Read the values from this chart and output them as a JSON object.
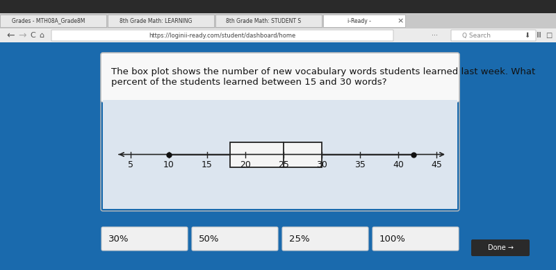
{
  "title_line1": "The box plot shows the number of new vocabulary words students learned last week. What",
  "title_line2": "percent of the students learned between 15 and 30 words?",
  "whisker_min": 10,
  "q1": 18,
  "median": 25,
  "q3": 30,
  "whisker_max": 42,
  "axis_min": 3,
  "axis_max": 47,
  "tick_values": [
    5,
    10,
    15,
    20,
    25,
    30,
    35,
    40,
    45
  ],
  "answer_choices": [
    "30%",
    "50%",
    "25%",
    "100%"
  ],
  "browser_bg": "#1a6aad",
  "card_top_color": "#f5f5f5",
  "card_body_color": "#dce5ef",
  "button_color": "#f0f0f0",
  "box_color": "#f5f5f5",
  "box_edge_color": "#222222",
  "line_color": "#222222",
  "dot_color": "#111111",
  "text_color": "#111111",
  "browser_bar_color": "#e0e0e0",
  "title_fontsize": 9.5,
  "tick_fontsize": 9,
  "answer_fontsize": 9.5,
  "tab_color": "#ffffff",
  "tab_text_color": "#333333"
}
